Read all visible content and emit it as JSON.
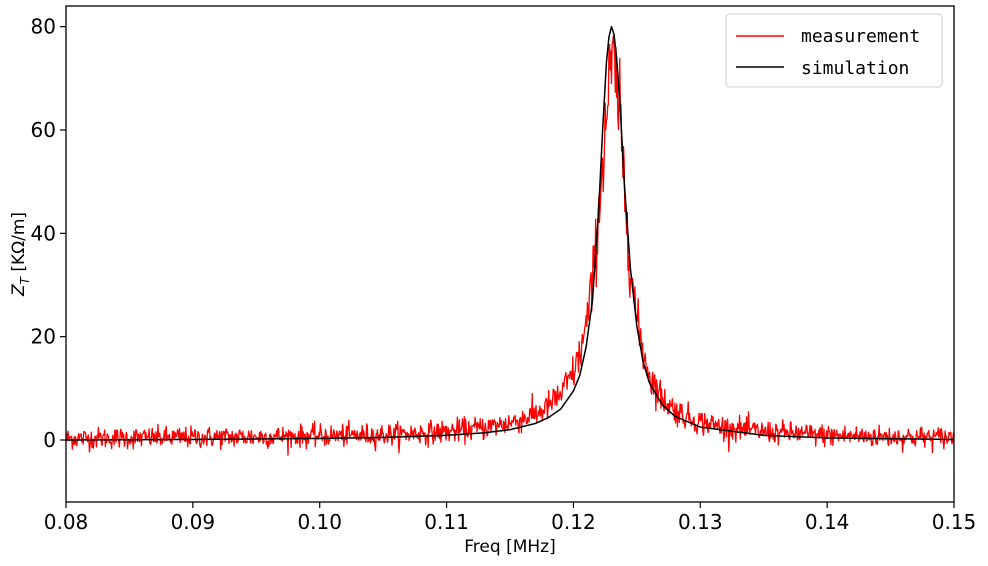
{
  "chart_data": {
    "type": "line",
    "title": "",
    "xlabel": "Freq [MHz]",
    "ylabel_main": "Z",
    "ylabel_sub": "T",
    "ylabel_unit": " [KΩ/m]",
    "xlim": [
      0.08,
      0.15
    ],
    "ylim": [
      -12,
      84
    ],
    "x_ticks": [
      0.08,
      0.09,
      0.1,
      0.11,
      0.12,
      0.13,
      0.14,
      0.15
    ],
    "x_tick_labels": [
      "0.08",
      "0.09",
      "0.10",
      "0.11",
      "0.12",
      "0.13",
      "0.14",
      "0.15"
    ],
    "y_ticks": [
      0,
      20,
      40,
      60,
      80
    ],
    "y_tick_labels": [
      "0",
      "20",
      "40",
      "60",
      "80"
    ],
    "grid": false,
    "legend_position": "top-right",
    "series": [
      {
        "name": "measurement",
        "color": "#ff0000",
        "style": "noisy",
        "x": [
          0.08,
          0.085,
          0.09,
          0.095,
          0.1,
          0.105,
          0.11,
          0.113,
          0.115,
          0.117,
          0.118,
          0.119,
          0.12,
          0.1205,
          0.121,
          0.1215,
          0.122,
          0.1225,
          0.1228,
          0.123,
          0.1233,
          0.1236,
          0.124,
          0.1245,
          0.125,
          0.1255,
          0.126,
          0.127,
          0.128,
          0.129,
          0.13,
          0.132,
          0.135,
          0.14,
          0.145,
          0.15
        ],
        "y": [
          0.3,
          0.4,
          0.5,
          0.6,
          0.8,
          1.0,
          1.6,
          2.4,
          3.3,
          5.0,
          6.5,
          8.8,
          13.0,
          16.5,
          22.0,
          30.0,
          44.0,
          60.0,
          68.0,
          73.0,
          70.0,
          64.0,
          50.0,
          34.0,
          23.0,
          17.0,
          12.5,
          8.0,
          5.8,
          4.4,
          3.5,
          2.4,
          1.6,
          0.9,
          0.6,
          0.5
        ]
      },
      {
        "name": "simulation",
        "color": "#000000",
        "style": "smooth",
        "x": [
          0.08,
          0.09,
          0.1,
          0.105,
          0.11,
          0.113,
          0.115,
          0.117,
          0.118,
          0.119,
          0.12,
          0.1205,
          0.121,
          0.1215,
          0.122,
          0.1223,
          0.1226,
          0.1228,
          0.123,
          0.1232,
          0.1234,
          0.1237,
          0.124,
          0.1245,
          0.125,
          0.1255,
          0.126,
          0.127,
          0.128,
          0.13,
          0.135,
          0.14,
          0.15
        ],
        "y": [
          0.0,
          0.1,
          0.3,
          0.5,
          0.9,
          1.4,
          2.0,
          3.2,
          4.3,
          6.0,
          9.5,
          12.5,
          18.0,
          27.0,
          45.0,
          60.0,
          73.0,
          78.0,
          80.0,
          78.5,
          74.0,
          64.0,
          50.0,
          33.0,
          22.0,
          15.0,
          11.0,
          6.8,
          4.6,
          2.5,
          0.9,
          0.4,
          0.1
        ]
      }
    ]
  }
}
